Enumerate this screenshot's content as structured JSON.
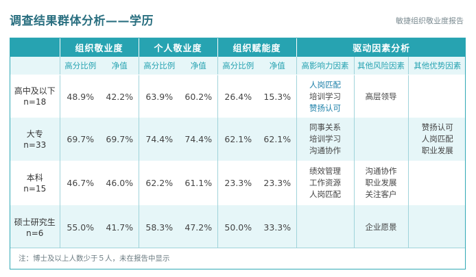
{
  "page": {
    "title": "调查结果群体分析——学历",
    "report_name": "敏捷组织敬业度报告",
    "note": "注：博士及以上人数少于５人，未在报告中显示"
  },
  "colors": {
    "accent": "#27a3b1",
    "row_alt": "#e6f6f8",
    "highlight_text": "#1b7fa8"
  },
  "table": {
    "group_headers": [
      "组织敬业度",
      "个人敬业度",
      "组织赋能度",
      "驱动因素分析"
    ],
    "sub_headers": [
      "高分比例",
      "净值",
      "高分比例",
      "净值",
      "高分比例",
      "净值",
      "高影响力因素",
      "其他风险因素",
      "其他优势因素"
    ],
    "rows": [
      {
        "label_line1": "高中及以下",
        "label_line2": "n=18",
        "values": [
          "48.9%",
          "42.2%",
          "63.9%",
          "60.2%",
          "26.4%",
          "15.3%"
        ],
        "high_impact": [
          {
            "text": "人岗匹配",
            "highlight": true
          },
          {
            "text": "培训学习",
            "highlight": false
          },
          {
            "text": "赞扬认可",
            "highlight": true
          }
        ],
        "other_risk": [
          {
            "text": "高层领导",
            "highlight": false
          }
        ],
        "other_strength": []
      },
      {
        "label_line1": "大专",
        "label_line2": "n=33",
        "values": [
          "69.7%",
          "69.7%",
          "74.4%",
          "74.4%",
          "62.1%",
          "62.1%"
        ],
        "high_impact": [
          {
            "text": "同事关系",
            "highlight": false
          },
          {
            "text": "培训学习",
            "highlight": false
          },
          {
            "text": "沟通协作",
            "highlight": false
          }
        ],
        "other_risk": [],
        "other_strength": [
          {
            "text": "赞扬认可",
            "highlight": false
          },
          {
            "text": "人岗匹配",
            "highlight": false
          },
          {
            "text": "职业发展",
            "highlight": false
          }
        ]
      },
      {
        "label_line1": "本科",
        "label_line2": "n=15",
        "values": [
          "46.7%",
          "46.0%",
          "62.2%",
          "61.1%",
          "23.3%",
          "23.3%"
        ],
        "high_impact": [
          {
            "text": "绩效管理",
            "highlight": false
          },
          {
            "text": "工作资源",
            "highlight": false
          },
          {
            "text": "人岗匹配",
            "highlight": false
          }
        ],
        "other_risk": [
          {
            "text": "沟通协作",
            "highlight": false
          },
          {
            "text": "职业发展",
            "highlight": false
          },
          {
            "text": "关注客户",
            "highlight": false
          }
        ],
        "other_strength": []
      },
      {
        "label_line1": "硕士研究生",
        "label_line2": "n=6",
        "values": [
          "55.0%",
          "41.7%",
          "58.3%",
          "47.2%",
          "50.0%",
          "33.3%"
        ],
        "high_impact": [],
        "other_risk": [
          {
            "text": "企业愿景",
            "highlight": false
          }
        ],
        "other_strength": []
      }
    ]
  }
}
